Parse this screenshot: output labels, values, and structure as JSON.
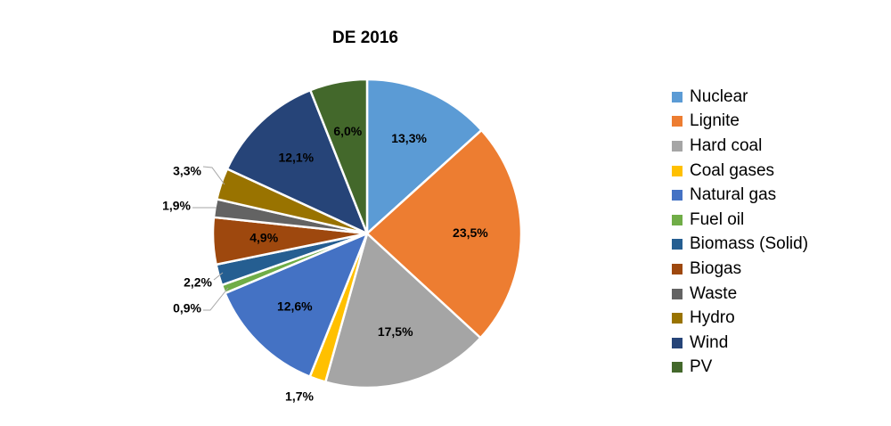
{
  "chart_data": {
    "type": "pie",
    "title": "DE 2016",
    "slices": [
      {
        "name": "Nuclear",
        "value": 13.3,
        "label": "13,3%",
        "color": "#5b9bd5"
      },
      {
        "name": "Lignite",
        "value": 23.5,
        "label": "23,5%",
        "color": "#ed7d31"
      },
      {
        "name": "Hard coal",
        "value": 17.5,
        "label": "17,5%",
        "color": "#a5a5a5"
      },
      {
        "name": "Coal gases",
        "value": 1.7,
        "label": "1,7%",
        "color": "#ffc000"
      },
      {
        "name": "Natural gas",
        "value": 12.6,
        "label": "12,6%",
        "color": "#4472c4"
      },
      {
        "name": "Fuel oil",
        "value": 0.9,
        "label": "0,9%",
        "color": "#70ad47"
      },
      {
        "name": "Biomass (Solid)",
        "value": 2.2,
        "label": "2,2%",
        "color": "#255e91"
      },
      {
        "name": "Biogas",
        "value": 4.9,
        "label": "4,9%",
        "color": "#9e480e"
      },
      {
        "name": "Waste",
        "value": 1.9,
        "label": "1,9%",
        "color": "#636363"
      },
      {
        "name": "Hydro",
        "value": 3.3,
        "label": "3,3%",
        "color": "#997300"
      },
      {
        "name": "Wind",
        "value": 12.1,
        "label": "12,1%",
        "color": "#264478"
      },
      {
        "name": "PV",
        "value": 6.0,
        "label": "6,0%",
        "color": "#43682b"
      }
    ],
    "legend_position": "right"
  }
}
